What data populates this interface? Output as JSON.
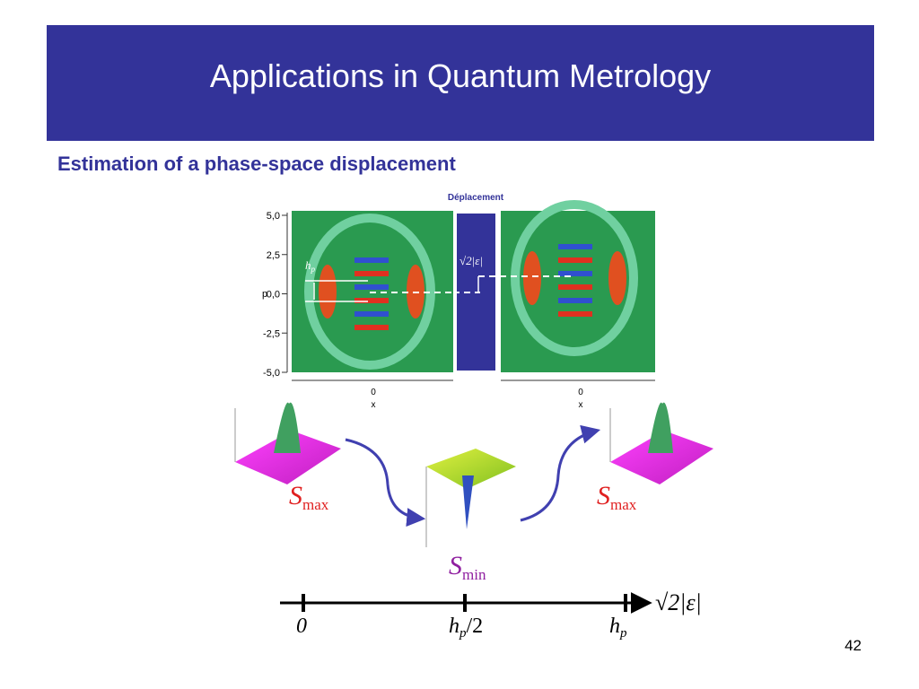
{
  "header": {
    "title": "Applications in Quantum Metrology"
  },
  "subtitle": "Estimation of a phase-space displacement",
  "figure": {
    "top_label": "Déplacement",
    "y_axis_label": "p",
    "y_ticks": [
      "5,0",
      "2,5",
      "0,0",
      "-2,5",
      "-5,0"
    ],
    "x_ticks": [
      "0",
      "0"
    ],
    "x_axis_labels": [
      "x",
      "x"
    ],
    "spacing_label": {
      "symbol": "h",
      "subscript": "p"
    },
    "shift_label": "√2|ε|",
    "states": [
      {
        "symbol": "S",
        "subscript": "max"
      },
      {
        "symbol": "S",
        "subscript": "min"
      },
      {
        "symbol": "S",
        "subscript": "max"
      }
    ],
    "scale": {
      "ticks": [
        {
          "symbol": "0",
          "subscript": "",
          "suffix": ""
        },
        {
          "symbol": "h",
          "subscript": "p",
          "suffix": "/2"
        },
        {
          "symbol": "h",
          "subscript": "p",
          "suffix": ""
        }
      ],
      "axis_label": "√2|ε|"
    }
  },
  "page_number": "42"
}
